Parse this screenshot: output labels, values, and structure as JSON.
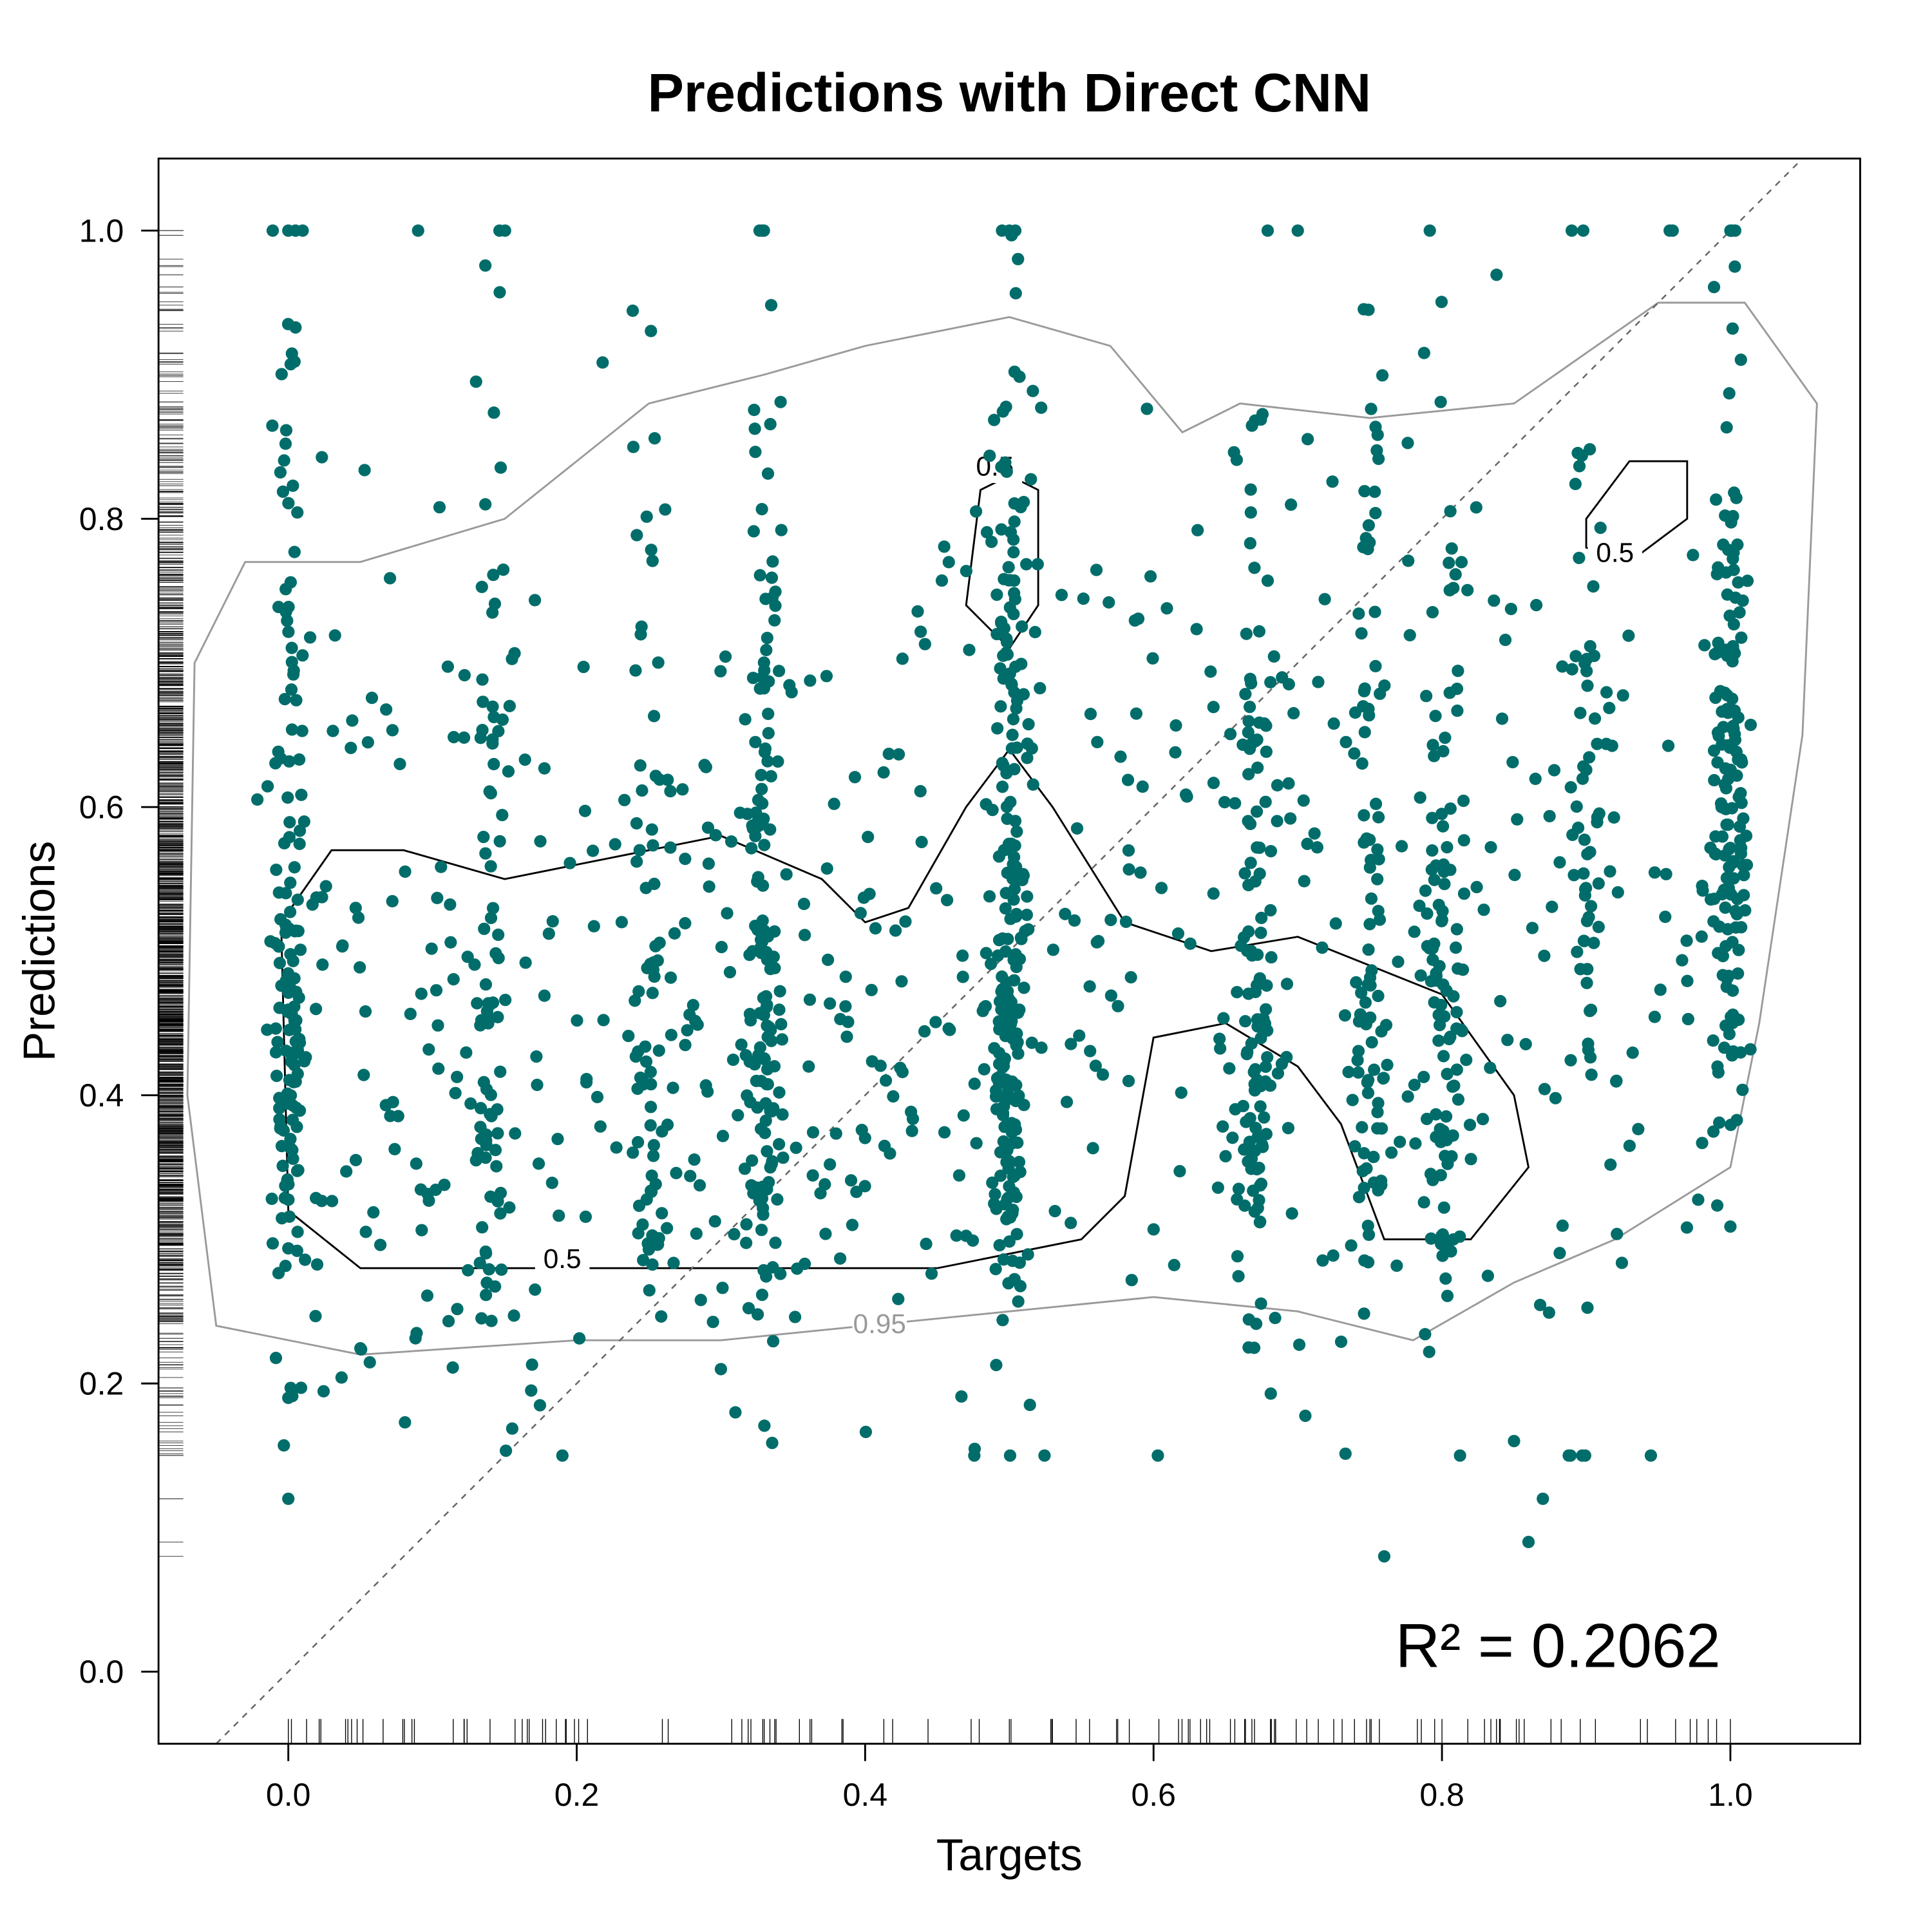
{
  "chart_data": {
    "type": "scatter",
    "title": "Predictions with Direct CNN",
    "xlabel": "Targets",
    "ylabel": "Predictions",
    "xlim": [
      -0.09,
      1.09
    ],
    "ylim": [
      -0.05,
      1.05
    ],
    "x_ticks": [
      "0.0",
      "0.2",
      "0.4",
      "0.6",
      "0.8",
      "1.0"
    ],
    "y_ticks": [
      "0.0",
      "0.2",
      "0.4",
      "0.6",
      "0.8",
      "1.0"
    ],
    "annotation": "R² = 0.2062",
    "reference_line": "y = x",
    "point_color": "#006D6A",
    "contour_levels": [
      {
        "level": "0.5",
        "color": "#000000"
      },
      {
        "level": "0.95",
        "color": "#9A9A9A"
      }
    ],
    "rug": {
      "x_axis": true,
      "y_axis": true
    },
    "grid": false,
    "legend": "none",
    "point_count_approx": 1800
  }
}
